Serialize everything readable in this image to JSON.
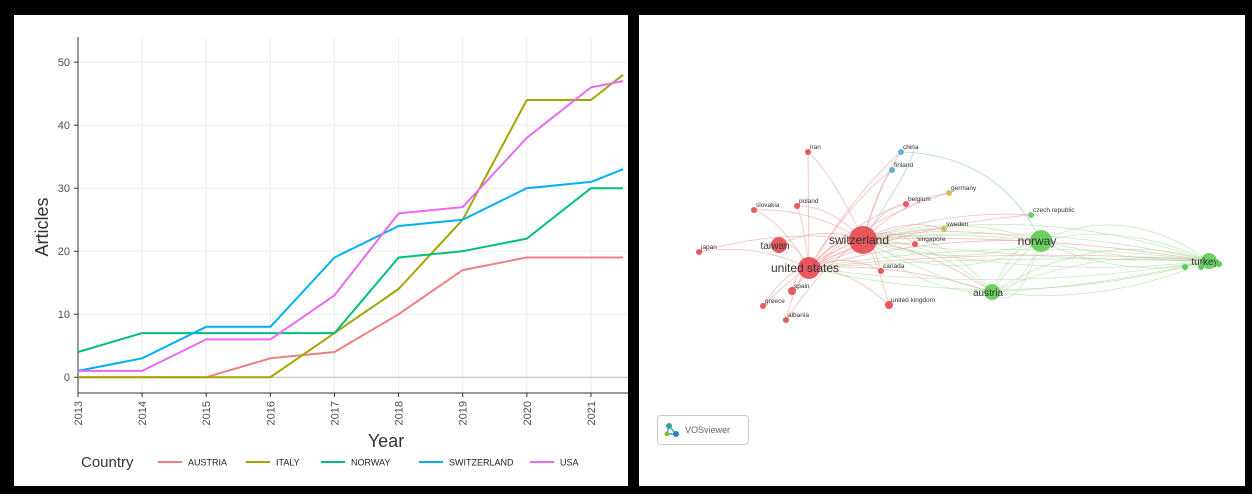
{
  "chart_data": [
    {
      "type": "line",
      "title": "",
      "xlabel": "Year",
      "ylabel": "Articles",
      "x": [
        "2013",
        "2014",
        "2015",
        "2016",
        "2017",
        "2018",
        "2019",
        "2020",
        "2021"
      ],
      "xrange": [
        2013,
        2021.5
      ],
      "ylim": [
        -2.5,
        54
      ],
      "yticks": [
        0,
        10,
        20,
        30,
        40,
        50
      ],
      "grid": true,
      "legend": {
        "title": "Country",
        "position": "bottom"
      },
      "series": [
        {
          "name": "AUSTRIA",
          "color": "#f08080",
          "values": [
            [
              2013,
              0
            ],
            [
              2014,
              0
            ],
            [
              2015,
              0
            ],
            [
              2016,
              3
            ],
            [
              2017,
              4
            ],
            [
              2018,
              10
            ],
            [
              2019,
              17
            ],
            [
              2020,
              19
            ],
            [
              2021,
              19
            ],
            [
              2021.5,
              19
            ]
          ]
        },
        {
          "name": "ITALY",
          "color": "#a3a500",
          "values": [
            [
              2013,
              0
            ],
            [
              2014,
              0
            ],
            [
              2015,
              0
            ],
            [
              2016,
              0
            ],
            [
              2017,
              7
            ],
            [
              2018,
              14
            ],
            [
              2019,
              25
            ],
            [
              2020,
              44
            ],
            [
              2021,
              44
            ],
            [
              2021.5,
              48
            ]
          ]
        },
        {
          "name": "NORWAY",
          "color": "#00bf7d",
          "values": [
            [
              2013,
              4
            ],
            [
              2014,
              7
            ],
            [
              2015,
              7
            ],
            [
              2016,
              7
            ],
            [
              2017,
              7
            ],
            [
              2018,
              19
            ],
            [
              2019,
              20
            ],
            [
              2020,
              22
            ],
            [
              2021,
              30
            ],
            [
              2021.5,
              30
            ]
          ]
        },
        {
          "name": "SWITZERLAND",
          "color": "#00b0f6",
          "values": [
            [
              2013,
              1
            ],
            [
              2014,
              3
            ],
            [
              2015,
              8
            ],
            [
              2016,
              8
            ],
            [
              2017,
              19
            ],
            [
              2018,
              24
            ],
            [
              2019,
              25
            ],
            [
              2020,
              30
            ],
            [
              2021,
              31
            ],
            [
              2021.5,
              33
            ]
          ]
        },
        {
          "name": "USA",
          "color": "#e76bf3",
          "values": [
            [
              2013,
              1
            ],
            [
              2014,
              1
            ],
            [
              2015,
              6
            ],
            [
              2016,
              6
            ],
            [
              2017,
              13
            ],
            [
              2018,
              26
            ],
            [
              2019,
              27
            ],
            [
              2020,
              38
            ],
            [
              2021,
              46
            ],
            [
              2021.5,
              47
            ]
          ]
        }
      ]
    }
  ],
  "network": {
    "branding": "VOSviewer",
    "nodes": [
      {
        "label": "switzerland",
        "cluster": "red",
        "size": "xl",
        "color": "#e8474f"
      },
      {
        "label": "united states",
        "cluster": "red",
        "size": "l",
        "color": "#e8474f"
      },
      {
        "label": "norway",
        "cluster": "green",
        "size": "l",
        "color": "#5fcb52"
      },
      {
        "label": "austria",
        "cluster": "green",
        "size": "m",
        "color": "#5fcb52"
      },
      {
        "label": "turkey",
        "cluster": "green",
        "size": "m",
        "color": "#5fcb52"
      },
      {
        "label": "taiwan",
        "cluster": "red",
        "size": "m",
        "color": "#e8474f"
      },
      {
        "label": "spain",
        "cluster": "red",
        "size": "s",
        "color": "#e8474f"
      },
      {
        "label": "united kingdom",
        "cluster": "red",
        "size": "s",
        "color": "#e8474f"
      },
      {
        "label": "canada",
        "cluster": "red",
        "size": "xs",
        "color": "#e8474f"
      },
      {
        "label": "poland",
        "cluster": "red",
        "size": "xs",
        "color": "#e8474f"
      },
      {
        "label": "slovakia",
        "cluster": "red",
        "size": "xs",
        "color": "#e8474f"
      },
      {
        "label": "japan",
        "cluster": "red",
        "size": "xs",
        "color": "#e8474f"
      },
      {
        "label": "greece",
        "cluster": "red",
        "size": "xs",
        "color": "#e8474f"
      },
      {
        "label": "albania",
        "cluster": "red",
        "size": "xs",
        "color": "#e8474f"
      },
      {
        "label": "iran",
        "cluster": "red",
        "size": "xs",
        "color": "#e8474f"
      },
      {
        "label": "belgium",
        "cluster": "red",
        "size": "xs",
        "color": "#e8474f"
      },
      {
        "label": "germany",
        "cluster": "yellow",
        "size": "xs",
        "color": "#c9b84a"
      },
      {
        "label": "sweden",
        "cluster": "yellow",
        "size": "xs",
        "color": "#c9b84a"
      },
      {
        "label": "singapore",
        "cluster": "red",
        "size": "xs",
        "color": "#e8474f"
      },
      {
        "label": "china",
        "cluster": "blue",
        "size": "xs",
        "color": "#5aa9d6"
      },
      {
        "label": "finland",
        "cluster": "blue",
        "size": "xs",
        "color": "#5aa9d6"
      },
      {
        "label": "czech republic",
        "cluster": "green",
        "size": "xs",
        "color": "#5fcb52"
      }
    ]
  }
}
